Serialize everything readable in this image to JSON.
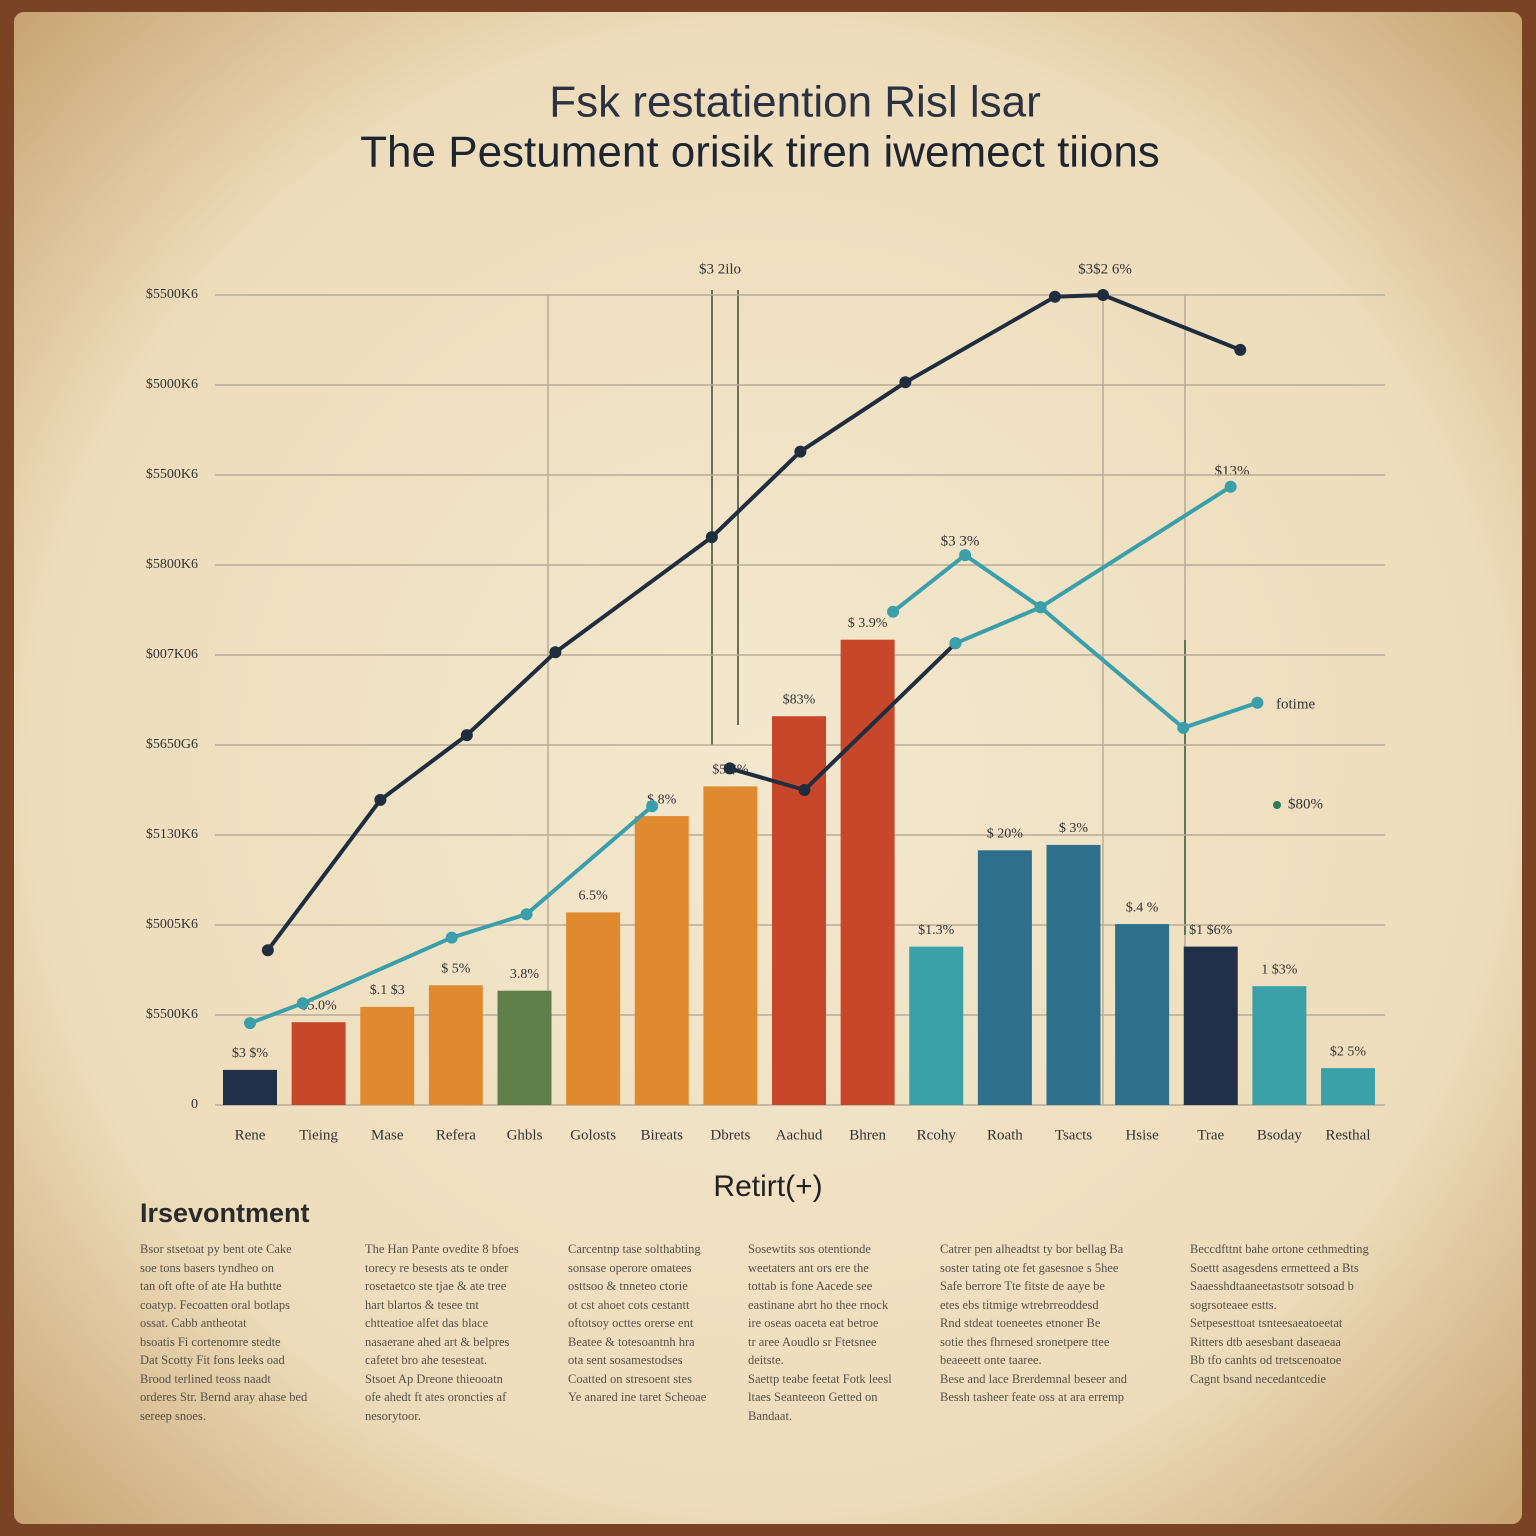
{
  "chart_data": {
    "type": "bar",
    "title": "Fsk restatiention Risl lsar",
    "subtitle": "The Pestument orisik tiren iwemect tiions",
    "x_label": "Retirt(+)",
    "categories": [
      "Rene",
      "Tieing",
      "Mase",
      "Refera",
      "Ghbls",
      "Golosts",
      "Bireats",
      "Dbrets",
      "Aachud",
      "Bhren",
      "Rcohy",
      "Roath",
      "Tsacts",
      "Hsise",
      "Trae",
      "Bsoday",
      "Resthal"
    ],
    "values": [
      3.9,
      9.2,
      10.9,
      13.3,
      12.7,
      21.4,
      32.1,
      35.4,
      43.2,
      51.7,
      17.6,
      28.3,
      28.9,
      20.1,
      17.6,
      13.2,
      4.1
    ],
    "colors": [
      "#1f3048",
      "#c8462a",
      "#e08a30",
      "#e08a30",
      "#5f7f4a",
      "#e08a30",
      "#e08a30",
      "#e08a30",
      "#c8462a",
      "#c8462a",
      "#3aa1a8",
      "#2e6f8c",
      "#2e6f8c",
      "#2e6f8c",
      "#1f3048",
      "#3aa1a8",
      "#3aa1a8"
    ],
    "bar_labels": [
      "$3 $%",
      "$5.0%",
      "$.1 $3",
      "$ 5%",
      "3.8%",
      "6.5%",
      "$.8%",
      "$5 $%",
      "$83%",
      "$ 3.9%",
      "$1.3%",
      "$ 20%",
      "$ 3%",
      "$.4 %",
      "$1 $6%",
      "1 $3%",
      "$2 5%"
    ],
    "lines": [
      {
        "color": "#1f2d3f",
        "x": [
          0.26,
          1.9,
          3.16,
          4.45,
          6.73,
          8.02,
          9.55,
          11.73,
          12.43,
          14.43
        ],
        "values": [
          17.2,
          33.9,
          41.1,
          50.3,
          63.1,
          72.6,
          80.3,
          89.8,
          90,
          83.9
        ]
      },
      {
        "color": "#3a9fab",
        "x": [
          0,
          0.77,
          2.94,
          4.03,
          5.86
        ],
        "values": [
          9.1,
          11.3,
          18.6,
          21.2,
          33.2
        ]
      },
      {
        "color": "#1f2d3f",
        "x": [
          6.99,
          8.08,
          10.28
        ],
        "values": [
          37.4,
          35,
          51.3
        ]
      },
      {
        "color": "#3a9fab",
        "x": [
          10.28,
          11.52,
          14.29
        ],
        "values": [
          51.3,
          55.3,
          68.7
        ]
      },
      {
        "color": "#3a9fab",
        "x": [
          9.37,
          10.42,
          11.52,
          13.6,
          14.68
        ],
        "values": [
          54.8,
          61.1,
          55.3,
          41.9,
          44.7
        ]
      }
    ],
    "xlim": [
      -0.5,
      16.5
    ],
    "ylim": [
      0,
      90
    ],
    "yticks": [
      {
        "value": 0,
        "label": "0"
      },
      {
        "value": 10,
        "label": "$5500K6"
      },
      {
        "value": 20,
        "label": "$5005K6"
      },
      {
        "value": 30,
        "label": "$5130K6"
      },
      {
        "value": 40,
        "label": "$5650G6"
      },
      {
        "value": 50,
        "label": "$007K06"
      },
      {
        "value": 60,
        "label": "$5800K6"
      },
      {
        "value": 70,
        "label": "$5500K6"
      },
      {
        "value": 80,
        "label": "$5000K6"
      },
      {
        "value": 90,
        "label": "$5500K6"
      }
    ],
    "grid": true,
    "annotations": [
      "$3 2ilo",
      "$3$2 6%",
      "$3 3%",
      "$13%",
      "fotime",
      "$80%"
    ],
    "text_heading": "Irsevontment",
    "text_columns": [
      [
        "Bsor stsetoat py bent ote Cake",
        "soe tons basers tyndheo on",
        "tan oft ofte of ate Ha buthtte",
        "coatyp. Fecoatten oral botlaps",
        "ossat. Cabb antheotat",
        "bsoatis Fi cortenomre stedte",
        "Dat Scotty Fit fons leeks oad",
        "Brood terlined teoss naadt",
        "orderes Str. Bernd aray ahase bed",
        "sereep snoes."
      ],
      [
        "The Han Pante ovedite 8 bfoes",
        "torecy re besests ats te onder",
        "rosetaetco ste tjae & ate tree",
        "hart blartos & tesee tnt",
        "chtteatioe alfet das blace",
        "nasaerane ahed art & belpres",
        "cafetet bro ahe tesesteat.",
        "Stsoet Ap Dreone thieooatn",
        "ofe ahedt ft ates oroncties af",
        "nesorytoor."
      ],
      [
        "Carcentnp tase solthabting",
        "sonsase operore omatees",
        "osttsoo & tnneteo ctorie",
        "ot cst ahoet cots cestantt",
        "oftotsoy octtes orerse ent",
        "Beatee & totesoantnh hra",
        "ota sent sosamestodses",
        "Coatted on stresoent stes",
        "Ye anared ine taret Scheoae"
      ],
      [
        "Sosewtits sos otentionde",
        "weetaters ant ors ere the",
        "tottab is fone Aacede see",
        "eastinane abrt ho thee rnock",
        "ire oseas oaceta eat betroe",
        "tr aree Aoudlo sr Ftetsnee",
        "deitste.",
        "Saettp teabe feetat Fotk leesl",
        "ltaes Seanteeon Getted on",
        "Bandaat."
      ],
      [
        "Catrer pen alheadtst ty bor bellag Ba",
        "soster tating ote fet gasesnoe s 5hee",
        "Safe berrore Tte fitste de aaye be",
        "etes ebs titmige wtrebrreoddesd",
        "Rnd stdeat toeneetes etnoner Be",
        "sotie thes fhrnesed sronetpere ttee",
        "beaeeett onte taaree.",
        "Bese and lace Brerdemnal beseer and",
        "Bessh tasheer feate oss at ara erremp"
      ],
      [
        "Beccdfttnt bahe ortone cethmedting",
        "Soettt asagesdens ermetteed a Bts",
        "Saaesshdtaaneetastsotr sotsoad b",
        "sogrsoteaee estts.",
        "Setpesesttoat tsnteesaeatoeetat",
        "Ritters dtb aesesbant daseaeaa",
        "Bb tfo canhts od tretscenoatoe",
        "Cagnt bsand necedantcedie"
      ]
    ]
  }
}
